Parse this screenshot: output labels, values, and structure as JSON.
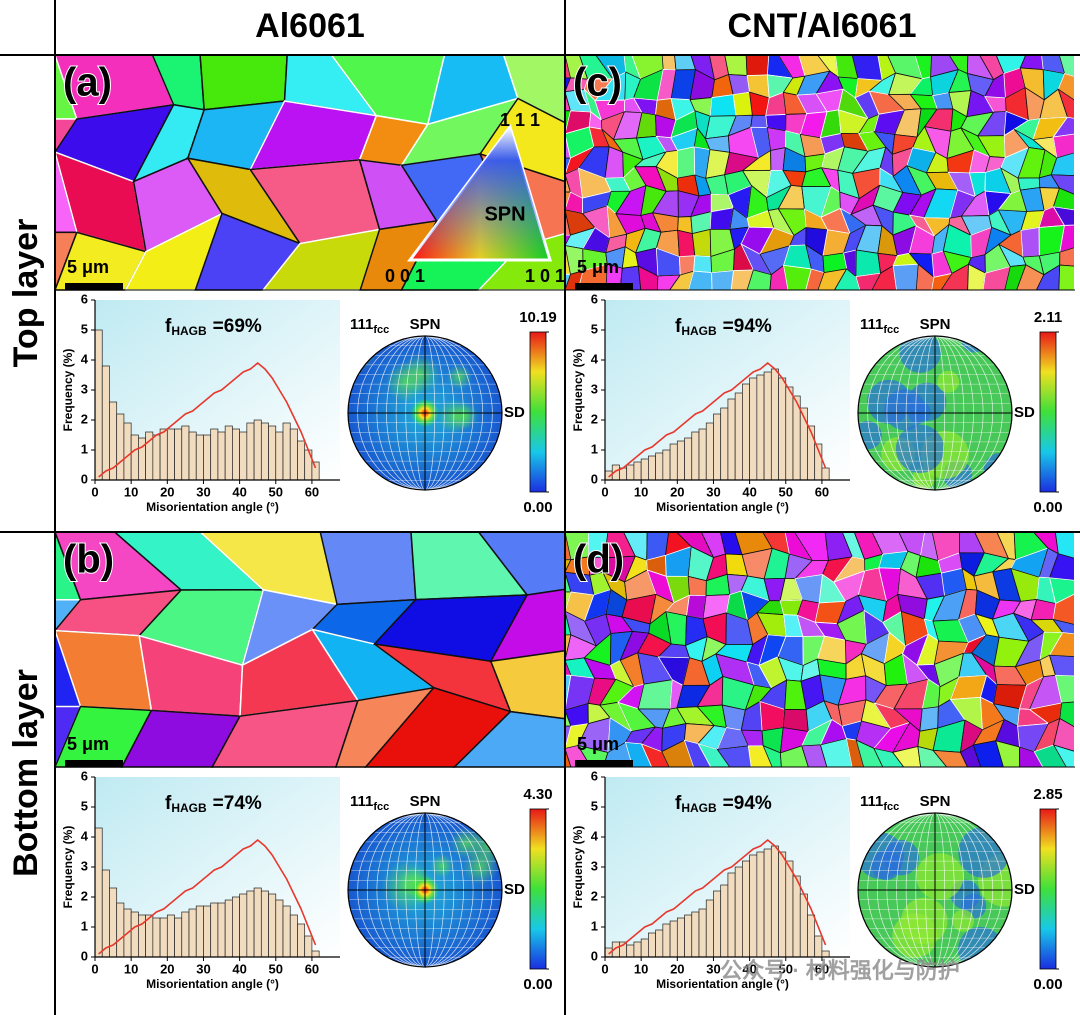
{
  "header": {
    "columns": [
      "Al6061",
      "CNT/Al6061"
    ],
    "rows": [
      "Top layer",
      "Bottom layer"
    ]
  },
  "ipf_key": {
    "top": "1 1 1",
    "left": "0 0 1",
    "right": "1 0 1",
    "label": "SPN"
  },
  "panels": [
    {
      "label": "(a)",
      "scale_bar": "5 μm",
      "histogram": {
        "type": "bar",
        "annotation": {
          "symbol": "f",
          "subscript": "HAGB",
          "text": "=69%"
        },
        "x": [
          1,
          3,
          5,
          7,
          9,
          11,
          13,
          15,
          17,
          19,
          21,
          23,
          25,
          27,
          29,
          31,
          33,
          35,
          37,
          39,
          41,
          43,
          45,
          47,
          49,
          51,
          53,
          55,
          57,
          59,
          61
        ],
        "series": [
          {
            "color": "#f2dcc0",
            "values": [
              5.0,
              3.8,
              2.6,
              2.2,
              1.9,
              1.5,
              1.4,
              1.6,
              1.5,
              1.7,
              1.7,
              1.7,
              1.8,
              1.6,
              1.5,
              1.5,
              1.7,
              1.6,
              1.8,
              1.7,
              1.6,
              1.9,
              2.0,
              1.9,
              1.8,
              1.6,
              1.9,
              1.7,
              1.3,
              1.0,
              0.6
            ]
          },
          {
            "type": "line",
            "color": "#e8382e",
            "values": [
              0.1,
              0.3,
              0.4,
              0.6,
              0.8,
              1.0,
              1.1,
              1.3,
              1.5,
              1.6,
              1.8,
              2.0,
              2.2,
              2.3,
              2.5,
              2.7,
              2.9,
              3.0,
              3.2,
              3.4,
              3.6,
              3.7,
              3.9,
              3.7,
              3.4,
              3.0,
              2.6,
              2.1,
              1.6,
              1.0,
              0.4
            ]
          }
        ],
        "xlim": [
          0,
          65
        ],
        "ylim": [
          0,
          6
        ],
        "xticks": [
          0,
          10,
          20,
          30,
          40,
          50,
          60
        ],
        "yticks": [
          0,
          1,
          2,
          3,
          4,
          5,
          6
        ],
        "xlabel": "Misorientation angle (°)",
        "ylabel": "Frequency (%)"
      },
      "pole_figure": {
        "plane": "111",
        "plane_subscript": "fcc",
        "top": "SPN",
        "right": "SD",
        "clim": [
          0,
          10.19
        ],
        "cticks": [
          {
            "value": 0,
            "label": "0.00"
          },
          10.19
        ]
      }
    },
    {
      "label": "(c)",
      "scale_bar": "5 μm",
      "histogram": {
        "type": "bar",
        "annotation": {
          "symbol": "f",
          "subscript": "HAGB",
          "text": "=94%"
        },
        "x": [
          1,
          3,
          5,
          7,
          9,
          11,
          13,
          15,
          17,
          19,
          21,
          23,
          25,
          27,
          29,
          31,
          33,
          35,
          37,
          39,
          41,
          43,
          45,
          47,
          49,
          51,
          53,
          55,
          57,
          59,
          61
        ],
        "series": [
          {
            "color": "#f2dcc0",
            "values": [
              0.3,
              0.5,
              0.4,
              0.5,
              0.6,
              0.7,
              0.8,
              0.9,
              1.0,
              1.2,
              1.3,
              1.4,
              1.6,
              1.7,
              1.9,
              2.2,
              2.4,
              2.7,
              2.9,
              3.2,
              3.4,
              3.5,
              3.6,
              3.7,
              3.4,
              3.1,
              2.8,
              2.4,
              1.8,
              1.2,
              0.4
            ]
          },
          {
            "type": "line",
            "color": "#e8382e",
            "values": [
              0.1,
              0.3,
              0.4,
              0.6,
              0.8,
              1.0,
              1.1,
              1.3,
              1.5,
              1.6,
              1.8,
              2.0,
              2.2,
              2.3,
              2.5,
              2.7,
              2.9,
              3.0,
              3.2,
              3.4,
              3.6,
              3.7,
              3.9,
              3.7,
              3.4,
              3.0,
              2.6,
              2.1,
              1.6,
              1.0,
              0.4
            ]
          }
        ],
        "xlim": [
          0,
          65
        ],
        "ylim": [
          0,
          6
        ],
        "xticks": [
          0,
          10,
          20,
          30,
          40,
          50,
          60
        ],
        "yticks": [
          0,
          1,
          2,
          3,
          4,
          5,
          6
        ],
        "xlabel": "Misorientation angle (°)",
        "ylabel": "Frequency (%)"
      },
      "pole_figure": {
        "plane": "111",
        "plane_subscript": "fcc",
        "top": "SPN",
        "right": "SD",
        "clim": [
          0,
          2.11
        ],
        "cticks": [
          {
            "value": 0,
            "label": "0.00"
          },
          2.11
        ]
      }
    },
    {
      "label": "(b)",
      "scale_bar": "5 μm",
      "histogram": {
        "type": "bar",
        "annotation": {
          "symbol": "f",
          "subscript": "HAGB",
          "text": "=74%"
        },
        "x": [
          1,
          3,
          5,
          7,
          9,
          11,
          13,
          15,
          17,
          19,
          21,
          23,
          25,
          27,
          29,
          31,
          33,
          35,
          37,
          39,
          41,
          43,
          45,
          47,
          49,
          51,
          53,
          55,
          57,
          59,
          61
        ],
        "series": [
          {
            "color": "#f2dcc0",
            "values": [
              4.3,
              2.9,
              2.3,
              1.8,
              1.6,
              1.5,
              1.4,
              1.4,
              1.3,
              1.3,
              1.4,
              1.3,
              1.5,
              1.6,
              1.7,
              1.7,
              1.8,
              1.8,
              1.9,
              2.0,
              2.1,
              2.2,
              2.3,
              2.2,
              2.1,
              1.9,
              1.7,
              1.4,
              1.1,
              0.7,
              0.2
            ]
          },
          {
            "type": "line",
            "color": "#e8382e",
            "values": [
              0.1,
              0.3,
              0.4,
              0.6,
              0.8,
              1.0,
              1.1,
              1.3,
              1.5,
              1.6,
              1.8,
              2.0,
              2.2,
              2.3,
              2.5,
              2.7,
              2.9,
              3.0,
              3.2,
              3.4,
              3.6,
              3.7,
              3.9,
              3.7,
              3.4,
              3.0,
              2.6,
              2.1,
              1.6,
              1.0,
              0.4
            ]
          }
        ],
        "xlim": [
          0,
          65
        ],
        "ylim": [
          0,
          6
        ],
        "xticks": [
          0,
          10,
          20,
          30,
          40,
          50,
          60
        ],
        "yticks": [
          0,
          1,
          2,
          3,
          4,
          5,
          6
        ],
        "xlabel": "Misorientation angle (°)",
        "ylabel": "Frequency (%)"
      },
      "pole_figure": {
        "plane": "111",
        "plane_subscript": "fcc",
        "top": "SPN",
        "right": "SD",
        "clim": [
          0,
          4.3
        ],
        "cticks": [
          {
            "value": 0,
            "label": "0.00"
          },
          {
            "value": 4.3,
            "label": "4.30"
          }
        ]
      }
    },
    {
      "label": "(d)",
      "scale_bar": "5 μm",
      "histogram": {
        "type": "bar",
        "annotation": {
          "symbol": "f",
          "subscript": "HAGB",
          "text": "=94%"
        },
        "x": [
          1,
          3,
          5,
          7,
          9,
          11,
          13,
          15,
          17,
          19,
          21,
          23,
          25,
          27,
          29,
          31,
          33,
          35,
          37,
          39,
          41,
          43,
          45,
          47,
          49,
          51,
          53,
          55,
          57,
          59,
          61
        ],
        "series": [
          {
            "color": "#f2dcc0",
            "values": [
              0.3,
              0.5,
              0.5,
              0.4,
              0.5,
              0.6,
              0.8,
              0.9,
              1.1,
              1.2,
              1.3,
              1.4,
              1.5,
              1.6,
              1.9,
              2.2,
              2.4,
              2.8,
              3.0,
              3.2,
              3.4,
              3.5,
              3.6,
              3.7,
              3.5,
              3.2,
              2.7,
              2.1,
              1.4,
              0.7,
              0.2
            ]
          },
          {
            "type": "line",
            "color": "#e8382e",
            "values": [
              0.1,
              0.3,
              0.4,
              0.6,
              0.8,
              1.0,
              1.1,
              1.3,
              1.5,
              1.6,
              1.8,
              2.0,
              2.2,
              2.3,
              2.5,
              2.7,
              2.9,
              3.0,
              3.2,
              3.4,
              3.6,
              3.7,
              3.9,
              3.7,
              3.4,
              3.0,
              2.6,
              2.1,
              1.6,
              1.0,
              0.4
            ]
          }
        ],
        "xlim": [
          0,
          65
        ],
        "ylim": [
          0,
          6
        ],
        "xticks": [
          0,
          10,
          20,
          30,
          40,
          50,
          60
        ],
        "yticks": [
          0,
          1,
          2,
          3,
          4,
          5,
          6
        ],
        "xlabel": "Misorientation angle (°)",
        "ylabel": "Frequency (%)"
      },
      "pole_figure": {
        "plane": "111",
        "plane_subscript": "fcc",
        "top": "SPN",
        "right": "SD",
        "clim": [
          0,
          2.85
        ],
        "cticks": [
          {
            "value": 0,
            "label": "0.00"
          },
          2.85
        ]
      }
    }
  ],
  "watermark": "公众号 · 材料强化与防护"
}
